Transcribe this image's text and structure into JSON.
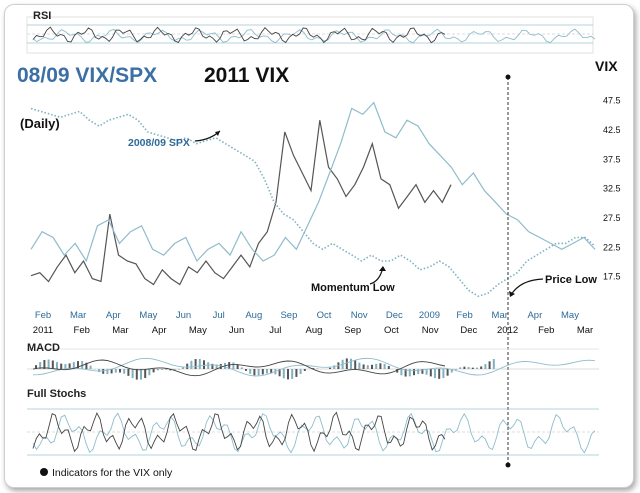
{
  "header": {
    "title_left": "08/09 VIX/SPX",
    "title_right": "2011 VIX",
    "timeframe": "(Daily)",
    "axis_title": "VIX"
  },
  "panels": {
    "rsi_label": "RSI",
    "macd_label": "MACD",
    "stoch_label": "Full Stochs"
  },
  "footnote": "Indicators for the VIX only",
  "colors": {
    "vix_2011": "#555555",
    "vix_2008": "#8fbccb",
    "spx_dotted": "#7fb1c2",
    "blue_text": "#2d6a98",
    "header_blue": "#3b6fa6"
  },
  "annotations": [
    {
      "text": "2008/09 SPX"
    },
    {
      "text": "Momentum Low"
    },
    {
      "text": "Price Low"
    }
  ],
  "chart_data": {
    "type": "line",
    "title": "08/09 VIX/SPX 2011 VIX",
    "ylabel": "VIX",
    "y_ticks": [
      47.5,
      42.5,
      37.5,
      32.5,
      27.5,
      22.5,
      17.5
    ],
    "ylim": [
      12.5,
      50
    ],
    "x_top_labels": [
      "Feb",
      "Mar",
      "Apr",
      "May",
      "Jun",
      "Jul",
      "Aug",
      "Sep",
      "Oct",
      "Nov",
      "Dec",
      "2009",
      "Feb",
      "Mar",
      "Apr",
      "May"
    ],
    "x_bottom_labels": [
      "2011",
      "Feb",
      "Mar",
      "Apr",
      "May",
      "Jun",
      "Jul",
      "Aug",
      "Sep",
      "Oct",
      "Nov",
      "Dec",
      "2012",
      "Feb",
      "Mar"
    ],
    "series": [
      {
        "name": "2011 VIX",
        "values": [
          17.5,
          18,
          16.5,
          19,
          21,
          18,
          20,
          17,
          16.5,
          28,
          21,
          20,
          19.5,
          17,
          16,
          18.5,
          17,
          16,
          19,
          18,
          20,
          18,
          17,
          19,
          21,
          19,
          23,
          25,
          30,
          42,
          38,
          35,
          32,
          44,
          36,
          34,
          31,
          33,
          36,
          40,
          34,
          33,
          29,
          31,
          33,
          30,
          32,
          30,
          33
        ]
      },
      {
        "name": "2008/09 VIX",
        "values": [
          22,
          25,
          24,
          21,
          23,
          20,
          26,
          27,
          23,
          25,
          26,
          22,
          21,
          23,
          24,
          20,
          22,
          23,
          21,
          25,
          22,
          20,
          21,
          24,
          22,
          26,
          30,
          35,
          40,
          46,
          45,
          47,
          42,
          41,
          44,
          43,
          40,
          38,
          36,
          33,
          35,
          32,
          30,
          28,
          27,
          25,
          24,
          23,
          22,
          23,
          24,
          22
        ]
      },
      {
        "name": "2008/09 SPX",
        "values": [
          46,
          45.5,
          45,
          44.5,
          45,
          45.5,
          44,
          43,
          44,
          44.5,
          45,
          44,
          42,
          41.5,
          41,
          40.5,
          41,
          40,
          40.5,
          41,
          40,
          39,
          38,
          37,
          34,
          30,
          28,
          27,
          25,
          23,
          22,
          23,
          22,
          21,
          20,
          21,
          20,
          20,
          21,
          20,
          18.5,
          19,
          20,
          19,
          17,
          15,
          14,
          14.5,
          16,
          17,
          18,
          20,
          21,
          22,
          23,
          23,
          24,
          24,
          22.5
        ]
      }
    ]
  }
}
